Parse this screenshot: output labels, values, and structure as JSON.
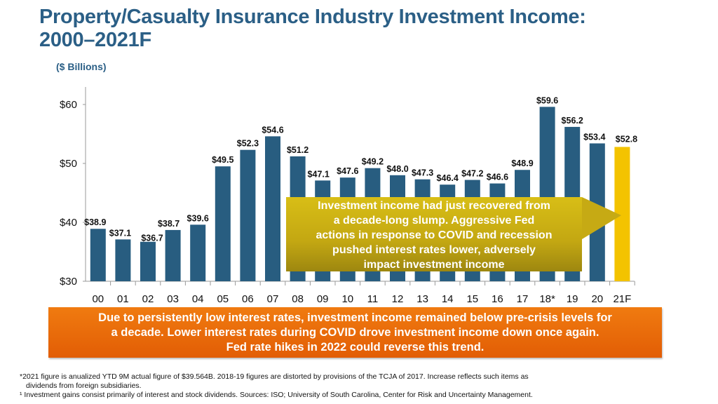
{
  "title_line1": "Property/Casualty Insurance Industry Investment Income:",
  "title_line2": "2000–2021F",
  "subtitle": "($ Billions)",
  "colors": {
    "bar": "#285d80",
    "forecast_bar": "#f3c300",
    "title": "#2b5f86",
    "callout": "#c6aa14",
    "banner": "#e9680a"
  },
  "chart_data": {
    "type": "bar",
    "title": "Property/Casualty Insurance Industry Investment Income: 2000–2021F",
    "ylabel": "$ Billions",
    "xlabel": "",
    "ylim": [
      30,
      60
    ],
    "yticks": [
      30,
      40,
      50,
      60
    ],
    "ytick_labels": [
      "$30",
      "$40",
      "$50",
      "$60"
    ],
    "categories": [
      "00",
      "01",
      "02",
      "03",
      "04",
      "05",
      "06",
      "07",
      "08",
      "09",
      "10",
      "11",
      "12",
      "13",
      "14",
      "15",
      "16",
      "17",
      "18*",
      "19",
      "20",
      "21F"
    ],
    "values": [
      38.9,
      37.1,
      36.7,
      38.7,
      39.6,
      49.5,
      52.3,
      54.6,
      51.2,
      47.1,
      47.6,
      49.2,
      48.0,
      47.3,
      46.4,
      47.2,
      46.6,
      48.9,
      59.6,
      56.2,
      53.4,
      52.8
    ],
    "data_labels": [
      "$38.9",
      "$37.1",
      "$36.7",
      "$38.7",
      "$39.6",
      "$49.5",
      "$52.3",
      "$54.6",
      "$51.2",
      "$47.1",
      "$47.6",
      "$49.2",
      "$48.0",
      "$47.3",
      "$46.4",
      "$47.2",
      "$46.6",
      "$48.9",
      "$59.6",
      "$56.2",
      "$53.4",
      "$52.8"
    ],
    "highlight_index": 21
  },
  "callout": {
    "lines": [
      "Investment income had just recovered from",
      "a decade-long slump.  Aggressive Fed",
      "actions in response to COVID and recession",
      "pushed interest rates lower, adversely",
      "impact investment income"
    ]
  },
  "banner": {
    "lines": [
      "Due to persistently low interest rates, investment income remained below pre-crisis levels for",
      "a decade.  Lower interest rates during COVID drove investment income down once again.",
      "Fed rate hikes in 2022 could reverse this trend."
    ]
  },
  "footnotes": {
    "line1": "*2021 figure is anualized YTD 9M actual figure of $39.564B.  2018-19 figures are distorted by provisions of the TCJA of 2017.  Increase reflects such items as",
    "line1b": "dividends from foreign subsidiaries.",
    "line2": "¹ Investment gains consist primarily of interest and stock dividends. Sources: ISO; University of South Carolina, Center for Risk and Uncertainty Management."
  }
}
